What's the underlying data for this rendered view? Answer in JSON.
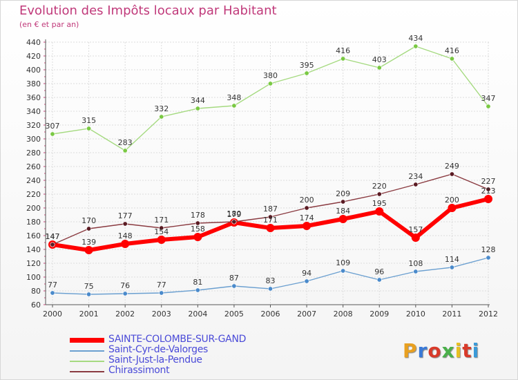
{
  "header": {
    "title": "Evolution des Impôts locaux par Habitant",
    "subtitle": "(en € et par an)"
  },
  "logo": {
    "text": "Proxiti",
    "letter_colors": [
      "#e8a021",
      "#3a7ad8",
      "#d83a2a",
      "#4ab04a",
      "#e8c021",
      "#d83a2a",
      "#3a9ad8"
    ]
  },
  "chart_data": {
    "type": "line",
    "title": "Evolution des Impôts locaux par Habitant",
    "subtitle": "(en € et par an)",
    "xlabel": "",
    "ylabel": "",
    "x": [
      "2000",
      "2001",
      "2002",
      "2003",
      "2004",
      "2005",
      "2006",
      "2007",
      "2008",
      "2009",
      "2010",
      "2011",
      "2012"
    ],
    "ylim": [
      60,
      440
    ],
    "yticks": [
      60,
      80,
      100,
      120,
      140,
      160,
      180,
      200,
      220,
      240,
      260,
      280,
      300,
      320,
      340,
      360,
      380,
      400,
      420,
      440
    ],
    "grid": true,
    "legend_position": "bottom-left",
    "series": [
      {
        "name": "SAINTE-COLOMBE-SUR-GAND",
        "color": "#ff0000",
        "marker_color": "#ff0000",
        "label_color": "#333333",
        "emphasis": "thick",
        "values": [
          147,
          139,
          148,
          154,
          158,
          179,
          171,
          174,
          184,
          195,
          157,
          200,
          213
        ]
      },
      {
        "name": "Saint-Cyr-de-Valorges",
        "color": "#6a9fd0",
        "marker_color": "#4a8acb",
        "label_color": "#333333",
        "emphasis": "normal",
        "values": [
          77,
          75,
          76,
          77,
          81,
          87,
          83,
          94,
          109,
          96,
          108,
          114,
          128
        ]
      },
      {
        "name": "Saint-Just-la-Pendue",
        "color": "#a5da80",
        "marker_color": "#7ac943",
        "label_color": "#333333",
        "emphasis": "normal",
        "values": [
          307,
          315,
          283,
          332,
          344,
          348,
          380,
          395,
          416,
          403,
          434,
          416,
          347
        ]
      },
      {
        "name": "Chirassimont",
        "color": "#8a3a40",
        "marker_color": "#5a1a22",
        "label_color": "#333333",
        "emphasis": "normal",
        "values": [
          147,
          170,
          177,
          171,
          178,
          180,
          187,
          200,
          209,
          220,
          234,
          249,
          227
        ]
      }
    ]
  }
}
